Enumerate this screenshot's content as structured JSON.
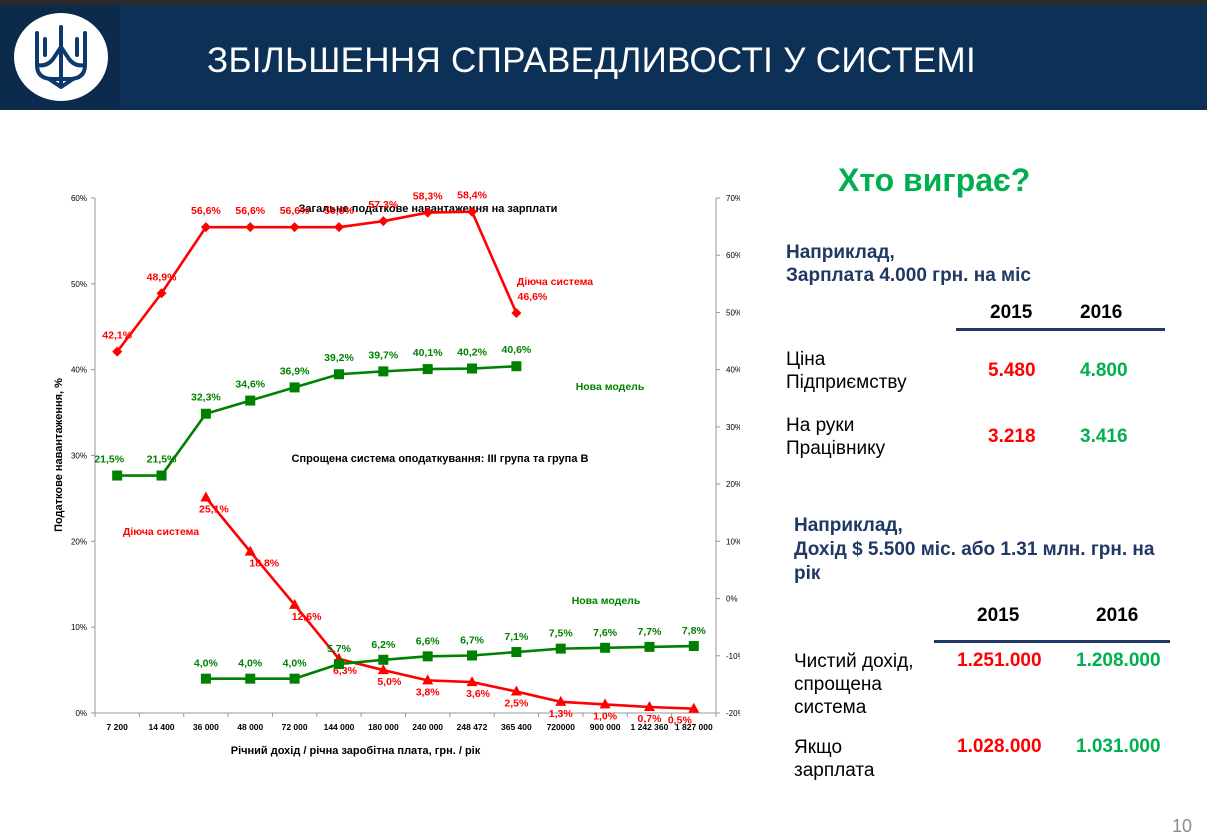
{
  "header": {
    "title": "ЗБІЛЬШЕННЯ СПРАВЕДЛИВОСТІ У СИСТЕМІ",
    "logo": "trident-icon"
  },
  "chart_data": {
    "type": "line",
    "categories": [
      "7 200",
      "14 400",
      "36 000",
      "48 000",
      "72 000",
      "144 000",
      "180 000",
      "240 000",
      "248 472",
      "365 400",
      "720000",
      "900 000",
      "1 242 360",
      "1 827 000"
    ],
    "xlabel": "Річний дохід / річна заробітна плата, грн. / рік",
    "ylabel": "Податкове навантаження, %",
    "ylim_left": [
      0,
      60
    ],
    "ylim_right": [
      -20,
      70
    ],
    "y_ticks_left": [
      "0%",
      "10%",
      "20%",
      "30%",
      "40%",
      "50%",
      "60%"
    ],
    "y_ticks_right": [
      "-20%",
      "-10%",
      "0%",
      "10%",
      "20%",
      "30%",
      "40%",
      "50%",
      "60%",
      "70%"
    ],
    "grid": false,
    "section_titles": [
      "Загальне податкове навантаження на зарплати",
      "Спрощена система оподаткування: ІІІ група та група В"
    ],
    "series": [
      {
        "name": "Діюча система",
        "axis": "left",
        "color": "#ff0000",
        "marker": "diamond",
        "values": [
          42.1,
          48.9,
          56.6,
          56.6,
          56.6,
          56.6,
          57.3,
          58.3,
          58.4,
          46.6,
          null,
          null,
          null,
          null
        ],
        "labels": [
          "42,1%",
          "48,9%",
          "56,6%",
          "56,6%",
          "56,6%",
          "56,6%",
          "57,3%",
          "58,3%",
          "58,4%",
          "46,6%",
          "",
          "",
          "",
          ""
        ]
      },
      {
        "name": "Нова модель",
        "axis": "right",
        "color": "#008000",
        "marker": "square",
        "values": [
          21.5,
          21.5,
          32.3,
          34.6,
          36.9,
          39.2,
          39.7,
          40.1,
          40.2,
          40.6,
          null,
          null,
          null,
          null
        ],
        "labels": [
          "21,5%",
          "21,5%",
          "32,3%",
          "34,6%",
          "36,9%",
          "39,2%",
          "39,7%",
          "40,1%",
          "40,2%",
          "40,6%",
          "",
          "",
          "",
          ""
        ]
      },
      {
        "name": "Діюча система",
        "axis": "left",
        "color": "#ff0000",
        "marker": "triangle",
        "values": [
          null,
          null,
          25.1,
          18.8,
          12.6,
          6.3,
          5.0,
          3.8,
          3.6,
          2.5,
          1.3,
          1.0,
          0.7,
          0.5
        ],
        "labels": [
          "",
          "",
          "25,1%",
          "18,8%",
          "12,6%",
          "6,3%",
          "5,0%",
          "3,8%",
          "3,6%",
          "2,5%",
          "1,3%",
          "1,0%",
          "0,7%",
          "0,5%"
        ]
      },
      {
        "name": "Нова модель",
        "axis": "left",
        "color": "#008000",
        "marker": "square",
        "values": [
          null,
          null,
          4.0,
          4.0,
          4.0,
          5.7,
          6.2,
          6.6,
          6.7,
          7.1,
          7.5,
          7.6,
          7.7,
          7.8
        ],
        "labels": [
          "",
          "",
          "4,0%",
          "4,0%",
          "4,0%",
          "5,7%",
          "6,2%",
          "6,6%",
          "6,7%",
          "7,1%",
          "7,5%",
          "7,6%",
          "7,7%",
          "7,8%"
        ]
      }
    ]
  },
  "right_panel": {
    "who_wins": "Хто виграє?",
    "example1": {
      "title_line1": "Наприклад,",
      "title_line2": "Зарплата 4.000 грн. на міс",
      "years": [
        "2015",
        "2016"
      ],
      "rows": [
        {
          "label_line1": "Ціна",
          "label_line2": "Підприємству",
          "v2015": "5.480",
          "v2016": "4.800"
        },
        {
          "label_line1": "На руки",
          "label_line2": "Працівнику",
          "v2015": "3.218",
          "v2016": "3.416"
        }
      ]
    },
    "example2": {
      "title_line1": "Наприклад,",
      "title_line2": "Дохід $ 5.500 міс.  або 1.31 млн. грн. на рік",
      "years": [
        "2015",
        "2016"
      ],
      "rows": [
        {
          "label_line1": "Чистий дохід,",
          "label_line2": "спрощена",
          "label_line3": "система",
          "v2015": "1.251.000",
          "v2016": "1.208.000"
        },
        {
          "label_line1": "Якщо",
          "label_line2": "зарплата",
          "v2015": "1.028.000",
          "v2016": "1.031.000"
        }
      ]
    }
  },
  "page_number": "10"
}
